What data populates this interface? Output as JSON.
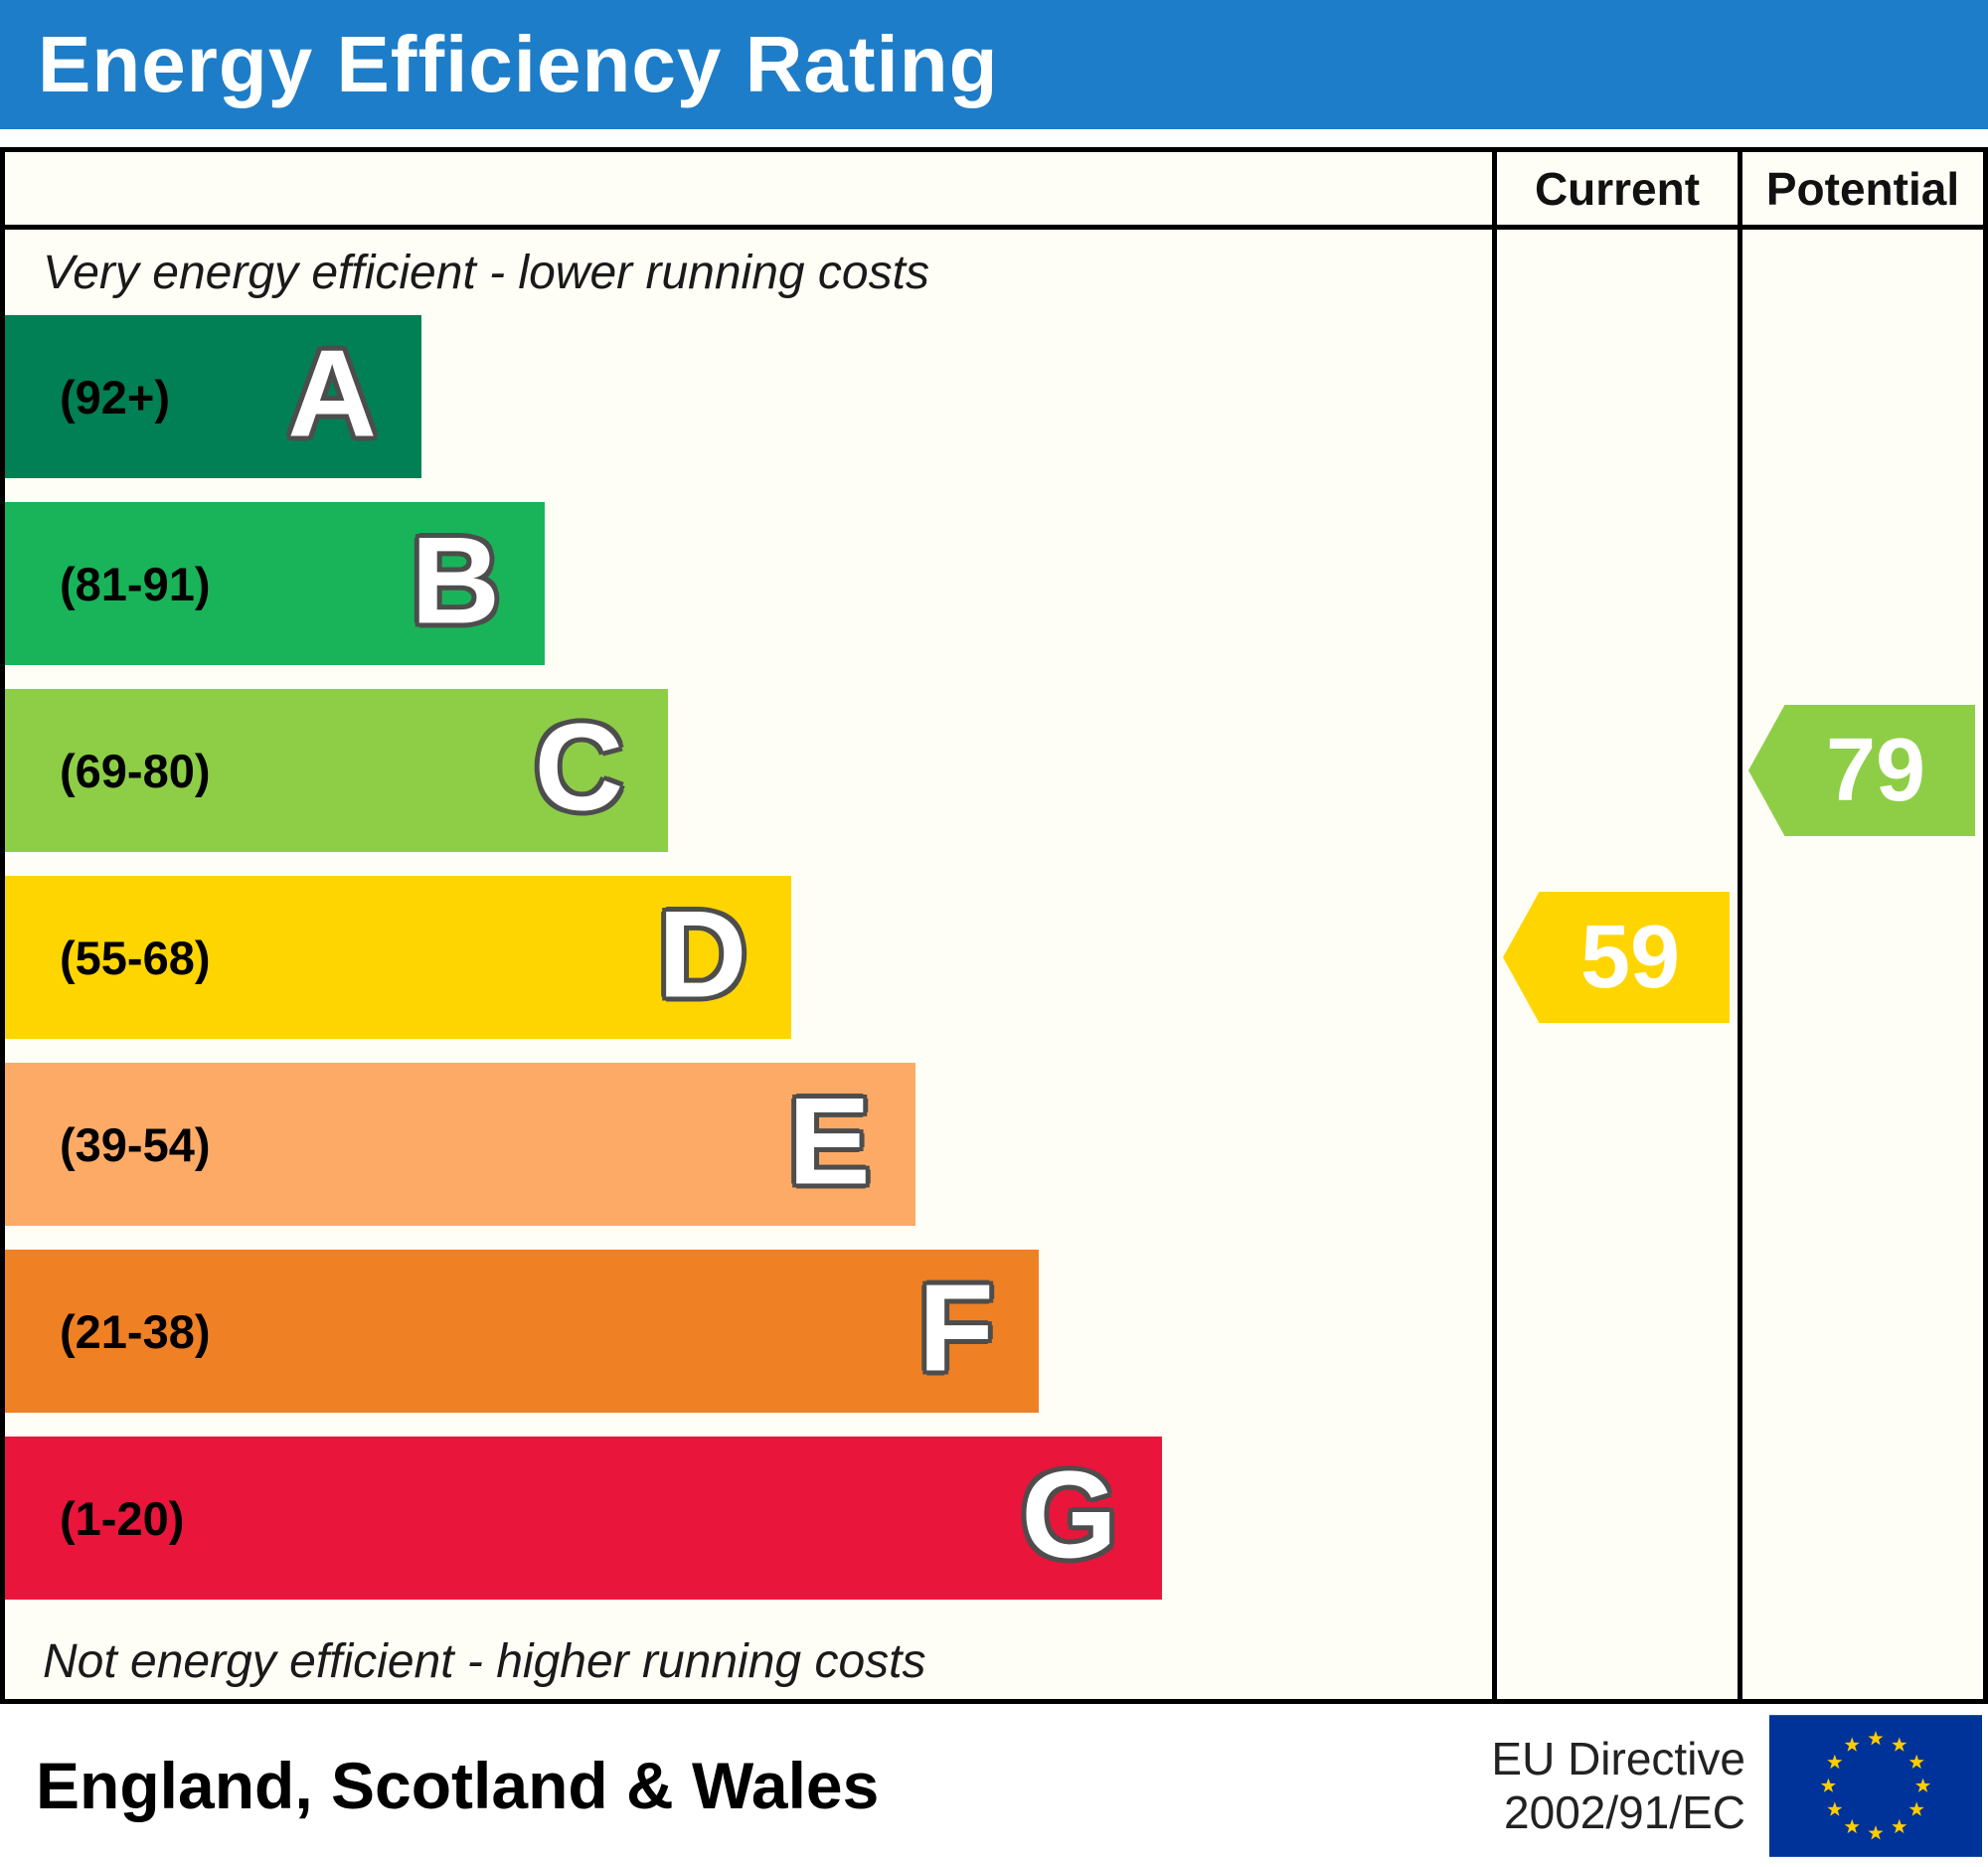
{
  "header": {
    "title": "Energy Efficiency Rating",
    "bg_color": "#1e7dc8"
  },
  "columns": {
    "current_label": "Current",
    "potential_label": "Potential"
  },
  "chart_data": {
    "type": "epc-energy-efficiency-rating",
    "top_note": "Very energy efficient - lower running costs",
    "bottom_note": "Not energy efficient - higher running costs",
    "bands": [
      {
        "letter": "A",
        "range": "(92+)",
        "color": "#008054",
        "width_pct": 28.0
      },
      {
        "letter": "B",
        "range": "(81-91)",
        "color": "#19b459",
        "width_pct": 36.3
      },
      {
        "letter": "C",
        "range": "(69-80)",
        "color": "#8dce46",
        "width_pct": 44.6
      },
      {
        "letter": "D",
        "range": "(55-68)",
        "color": "#ffd500",
        "width_pct": 52.9
      },
      {
        "letter": "E",
        "range": "(39-54)",
        "color": "#fcaa65",
        "width_pct": 61.2
      },
      {
        "letter": "F",
        "range": "(21-38)",
        "color": "#ef8023",
        "width_pct": 69.5
      },
      {
        "letter": "G",
        "range": "(1-20)",
        "color": "#e9153b",
        "width_pct": 77.8
      }
    ],
    "current": {
      "value": 59,
      "band": "D",
      "color": "#ffd500"
    },
    "potential": {
      "value": 79,
      "band": "C",
      "color": "#8dce46"
    }
  },
  "footer": {
    "region": "England, Scotland & Wales",
    "directive": [
      "EU Directive",
      "2002/91/EC"
    ],
    "flag_colors": {
      "field": "#003399",
      "stars": "#ffcc00"
    }
  }
}
